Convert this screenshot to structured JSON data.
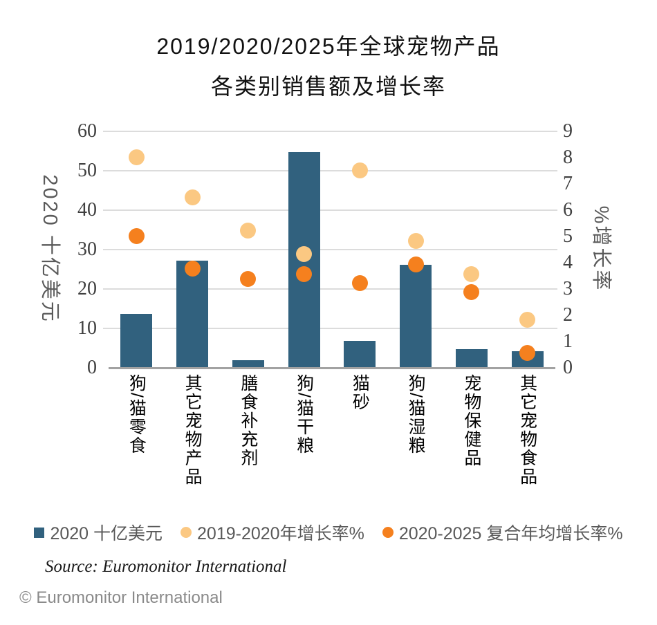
{
  "title": {
    "line1": "2019/2020/2025年全球宠物产品",
    "line2": "各类别销售额及增长率"
  },
  "chart_data": {
    "type": "bar",
    "subtype": "bar-with-scatter-overlay",
    "categories": [
      "狗/猫零食",
      "其它宠物产品",
      "膳食补充剂",
      "狗/猫干粮",
      "猫砂",
      "狗/猫湿粮",
      "宠物保健品",
      "其它宠物食品"
    ],
    "series": [
      {
        "name": "2020 十亿美元",
        "type": "bar",
        "axis": "left",
        "color": "#31617e",
        "values": [
          13.5,
          27.0,
          1.7,
          54.5,
          6.6,
          26.0,
          4.6,
          4.0
        ]
      },
      {
        "name": "2019-2020年增长率%",
        "type": "scatter",
        "axis": "right",
        "color": "#fbc882",
        "values": [
          8.0,
          6.45,
          5.2,
          4.3,
          7.5,
          4.8,
          3.55,
          1.8
        ]
      },
      {
        "name": "2020-2025 复合年均增长率%",
        "type": "scatter",
        "axis": "right",
        "color": "#f5801e",
        "values": [
          5.0,
          3.75,
          3.35,
          3.55,
          3.2,
          3.9,
          2.85,
          0.55
        ]
      }
    ],
    "left_axis": {
      "title": "2020 十亿美元",
      "min": 0,
      "max": 60,
      "ticks": [
        0,
        10,
        20,
        30,
        40,
        50,
        60
      ]
    },
    "right_axis": {
      "title": "%增长率",
      "min": 0,
      "max": 9,
      "ticks": [
        0,
        1,
        2,
        3,
        4,
        5,
        6,
        7,
        8,
        9
      ]
    },
    "grid": true,
    "legend_position": "bottom"
  },
  "colors": {
    "bar": "#31617e",
    "dot_light": "#fbc882",
    "dot_dark": "#f5801e",
    "gridline": "#dcdcdc",
    "axis_line": "#a2a2a2"
  },
  "source": "Source: Euromonitor International",
  "copyright": "© Euromonitor International"
}
